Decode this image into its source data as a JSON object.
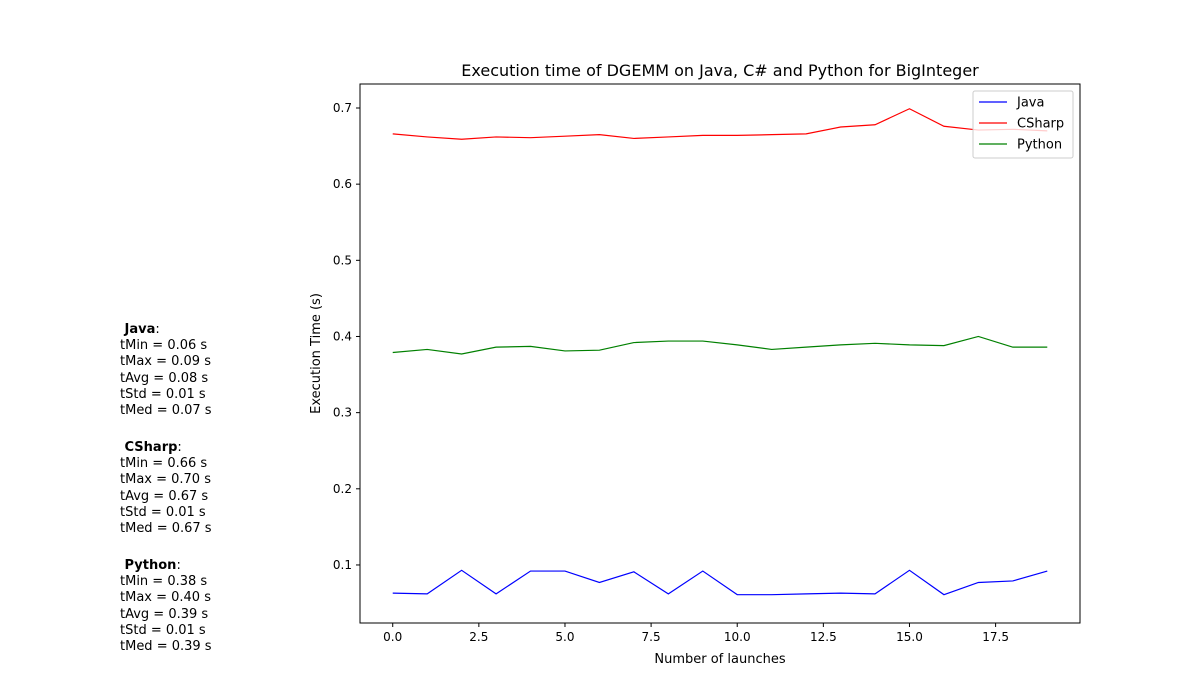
{
  "chart_data": {
    "type": "line",
    "title": "Execution time of DGEMM on Java, C# and Python for BigInteger",
    "xlabel": "Number of launches",
    "ylabel": "Execution Time (s)",
    "xlim": [
      -0.95,
      19.95
    ],
    "ylim": [
      0.0238,
      0.7315
    ],
    "xticks": [
      0.0,
      2.5,
      5.0,
      7.5,
      10.0,
      12.5,
      15.0,
      17.5
    ],
    "xtick_labels": [
      "0.0",
      "2.5",
      "5.0",
      "7.5",
      "10.0",
      "12.5",
      "15.0",
      "17.5"
    ],
    "yticks": [
      0.1,
      0.2,
      0.3,
      0.4,
      0.5,
      0.6,
      0.7
    ],
    "ytick_labels": [
      "0.1",
      "0.2",
      "0.3",
      "0.4",
      "0.5",
      "0.6",
      "0.7"
    ],
    "grid": false,
    "legend_position": "top-right",
    "x": [
      0,
      1,
      2,
      3,
      4,
      5,
      6,
      7,
      8,
      9,
      10,
      11,
      12,
      13,
      14,
      15,
      16,
      17,
      18,
      19
    ],
    "series": [
      {
        "name": "Java",
        "color": "#0000ff",
        "values": [
          0.063,
          0.062,
          0.093,
          0.062,
          0.092,
          0.092,
          0.077,
          0.091,
          0.062,
          0.092,
          0.061,
          0.061,
          0.062,
          0.063,
          0.062,
          0.093,
          0.061,
          0.077,
          0.079,
          0.092
        ]
      },
      {
        "name": "CSharp",
        "color": "#ff0000",
        "values": [
          0.666,
          0.662,
          0.659,
          0.662,
          0.661,
          0.663,
          0.665,
          0.66,
          0.662,
          0.664,
          0.664,
          0.665,
          0.666,
          0.675,
          0.678,
          0.699,
          0.676,
          0.671,
          0.672,
          0.67
        ]
      },
      {
        "name": "Python",
        "color": "#008000",
        "values": [
          0.379,
          0.383,
          0.377,
          0.386,
          0.387,
          0.381,
          0.382,
          0.392,
          0.394,
          0.394,
          0.389,
          0.383,
          0.386,
          0.389,
          0.391,
          0.389,
          0.388,
          0.4,
          0.386,
          0.386
        ]
      }
    ]
  },
  "stats": [
    {
      "name": "Java",
      "lines": [
        "tMin = 0.06 s",
        "tMax = 0.09 s",
        "tAvg = 0.08 s",
        "tStd = 0.01 s",
        "tMed = 0.07 s"
      ]
    },
    {
      "name": "CSharp",
      "lines": [
        "tMin = 0.66 s",
        "tMax = 0.70 s",
        "tAvg = 0.67 s",
        "tStd = 0.01 s",
        "tMed = 0.67 s"
      ]
    },
    {
      "name": "Python",
      "lines": [
        "tMin = 0.38 s",
        "tMax = 0.40 s",
        "tAvg = 0.39 s",
        "tStd = 0.01 s",
        "tMed = 0.39 s"
      ]
    }
  ]
}
